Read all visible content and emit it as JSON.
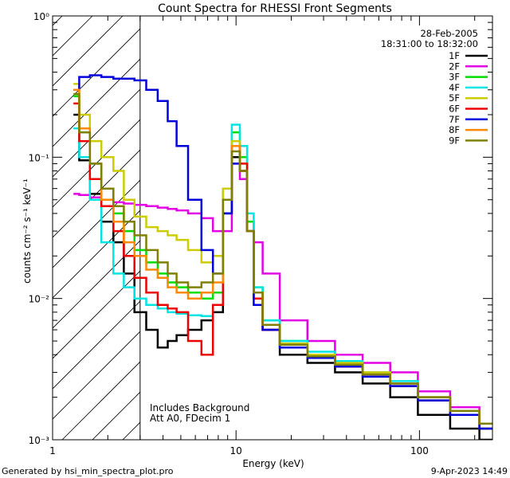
{
  "chart_data": {
    "type": "line",
    "title": "Count Spectra for RHESSI Front Segments",
    "xlabel": "Energy (keV)",
    "ylabel": "counts cm⁻² s⁻¹ keV⁻¹",
    "xscale": "log",
    "yscale": "log",
    "xlim": [
      1,
      250
    ],
    "ylim": [
      0.001,
      1.0
    ],
    "x_ticks": [
      {
        "v": 1,
        "label": "1"
      },
      {
        "v": 10,
        "label": "10"
      },
      {
        "v": 100,
        "label": "100"
      }
    ],
    "y_ticks": [
      {
        "v": 1,
        "label": "10⁰"
      },
      {
        "v": 0.1,
        "label": "10⁻¹"
      },
      {
        "v": 0.01,
        "label": "10⁻²"
      },
      {
        "v": 0.001,
        "label": "10⁻³"
      }
    ],
    "date": "28-Feb-2005",
    "time_range": "18:31:00 to 18:32:00",
    "threshold_energy": 3.0,
    "annotation_lines": [
      "Includes Background",
      "Att A0, FDecim 1"
    ],
    "footer_left": "Generated by hsi_min_spectra_plot.pro",
    "footer_right": "9-Apr-2023 14:49",
    "series": [
      {
        "name": "1F",
        "color": "#000000",
        "x": [
          1.3,
          1.5,
          1.7,
          2.0,
          2.3,
          2.6,
          3.0,
          3.5,
          4.0,
          4.5,
          5.0,
          6.0,
          7.0,
          8.0,
          9.0,
          10.0,
          11.0,
          12.0,
          13.0,
          15.0,
          20.0,
          30.0,
          40.0,
          60.0,
          80.0,
          120.0,
          180.0,
          250.0
        ],
        "y": [
          0.2,
          0.095,
          0.055,
          0.035,
          0.025,
          0.015,
          0.008,
          0.006,
          0.0045,
          0.005,
          0.0055,
          0.006,
          0.007,
          0.008,
          0.04,
          0.1,
          0.08,
          0.03,
          0.01,
          0.006,
          0.004,
          0.0035,
          0.003,
          0.0025,
          0.002,
          0.0015,
          0.0012,
          0.001
        ]
      },
      {
        "name": "2F",
        "color": "#e400e4",
        "x": [
          1.3,
          1.5,
          1.7,
          2.0,
          2.3,
          2.6,
          3.0,
          3.5,
          4.0,
          4.5,
          5.0,
          6.0,
          7.0,
          8.0,
          9.0,
          10.0,
          11.0,
          12.0,
          13.0,
          15.0,
          20.0,
          30.0,
          40.0,
          60.0,
          80.0,
          120.0,
          180.0,
          250.0
        ],
        "y": [
          0.055,
          0.054,
          0.052,
          0.05,
          0.048,
          0.047,
          0.046,
          0.045,
          0.044,
          0.043,
          0.042,
          0.04,
          0.037,
          0.03,
          0.03,
          0.09,
          0.07,
          0.035,
          0.025,
          0.015,
          0.007,
          0.005,
          0.004,
          0.0035,
          0.003,
          0.0022,
          0.0017,
          0.0013
        ]
      },
      {
        "name": "3F",
        "color": "#00dd00",
        "x": [
          1.3,
          1.5,
          1.7,
          2.0,
          2.3,
          2.6,
          3.0,
          3.5,
          4.0,
          4.5,
          5.0,
          6.0,
          7.0,
          8.0,
          9.0,
          10.0,
          11.0,
          12.0,
          13.0,
          15.0,
          20.0,
          30.0,
          40.0,
          60.0,
          80.0,
          120.0,
          180.0,
          250.0
        ],
        "y": [
          0.27,
          0.15,
          0.09,
          0.06,
          0.04,
          0.03,
          0.022,
          0.018,
          0.015,
          0.013,
          0.012,
          0.011,
          0.01,
          0.011,
          0.05,
          0.15,
          0.1,
          0.035,
          0.012,
          0.007,
          0.005,
          0.004,
          0.0035,
          0.003,
          0.0025,
          0.002,
          0.0016,
          0.0012
        ]
      },
      {
        "name": "4F",
        "color": "#00e4e4",
        "x": [
          1.3,
          1.5,
          1.7,
          2.0,
          2.3,
          2.6,
          3.0,
          3.5,
          4.0,
          4.5,
          5.0,
          6.0,
          7.0,
          8.0,
          9.0,
          10.0,
          11.0,
          12.0,
          13.0,
          15.0,
          20.0,
          30.0,
          40.0,
          60.0,
          80.0,
          120.0,
          180.0,
          250.0
        ],
        "y": [
          0.16,
          0.1,
          0.05,
          0.025,
          0.015,
          0.012,
          0.01,
          0.009,
          0.0085,
          0.008,
          0.0078,
          0.0076,
          0.0075,
          0.009,
          0.06,
          0.17,
          0.12,
          0.04,
          0.012,
          0.007,
          0.005,
          0.0042,
          0.0036,
          0.003,
          0.0026,
          0.002,
          0.0016,
          0.0013
        ]
      },
      {
        "name": "5F",
        "color": "#cccc00",
        "x": [
          1.3,
          1.5,
          1.7,
          2.0,
          2.3,
          2.6,
          3.0,
          3.5,
          4.0,
          4.5,
          5.0,
          6.0,
          7.0,
          8.0,
          9.0,
          10.0,
          11.0,
          12.0,
          13.0,
          15.0,
          20.0,
          30.0,
          40.0,
          60.0,
          80.0,
          120.0,
          180.0,
          250.0
        ],
        "y": [
          0.33,
          0.2,
          0.13,
          0.1,
          0.08,
          0.05,
          0.038,
          0.032,
          0.03,
          0.028,
          0.026,
          0.022,
          0.018,
          0.02,
          0.06,
          0.13,
          0.09,
          0.03,
          0.011,
          0.0065,
          0.0048,
          0.004,
          0.0035,
          0.003,
          0.0025,
          0.002,
          0.0016,
          0.0013
        ]
      },
      {
        "name": "6F",
        "color": "#ee0000",
        "x": [
          1.3,
          1.5,
          1.7,
          2.0,
          2.3,
          2.6,
          3.0,
          3.5,
          4.0,
          4.5,
          5.0,
          6.0,
          7.0,
          8.0,
          9.0,
          10.0,
          11.0,
          12.0,
          13.0,
          15.0,
          20.0,
          30.0,
          40.0,
          60.0,
          80.0,
          120.0,
          180.0,
          250.0
        ],
        "y": [
          0.24,
          0.13,
          0.07,
          0.045,
          0.03,
          0.02,
          0.014,
          0.011,
          0.009,
          0.0085,
          0.008,
          0.005,
          0.004,
          0.009,
          0.05,
          0.12,
          0.09,
          0.03,
          0.01,
          0.006,
          0.0045,
          0.0038,
          0.0033,
          0.0028,
          0.0024,
          0.0019,
          0.0015,
          0.0012
        ]
      },
      {
        "name": "7F",
        "color": "#0000dd",
        "x": [
          1.3,
          1.5,
          1.7,
          2.0,
          2.3,
          2.6,
          3.0,
          3.5,
          4.0,
          4.5,
          5.0,
          6.0,
          7.0,
          8.0,
          9.0,
          10.0,
          11.0,
          12.0,
          13.0,
          15.0,
          20.0,
          30.0,
          40.0,
          60.0,
          80.0,
          120.0,
          180.0,
          250.0
        ],
        "y": [
          0.3,
          0.37,
          0.38,
          0.37,
          0.36,
          0.36,
          0.35,
          0.3,
          0.25,
          0.18,
          0.12,
          0.05,
          0.022,
          0.015,
          0.04,
          0.09,
          0.08,
          0.03,
          0.009,
          0.006,
          0.0045,
          0.0038,
          0.0033,
          0.0028,
          0.0024,
          0.0019,
          0.0015,
          0.0012
        ]
      },
      {
        "name": "8F",
        "color": "#ff8800",
        "x": [
          1.3,
          1.5,
          1.7,
          2.0,
          2.3,
          2.6,
          3.0,
          3.5,
          4.0,
          4.5,
          5.0,
          6.0,
          7.0,
          8.0,
          9.0,
          10.0,
          11.0,
          12.0,
          13.0,
          15.0,
          20.0,
          30.0,
          40.0,
          60.0,
          80.0,
          120.0,
          180.0,
          250.0
        ],
        "y": [
          0.3,
          0.16,
          0.09,
          0.05,
          0.035,
          0.025,
          0.02,
          0.016,
          0.014,
          0.012,
          0.011,
          0.01,
          0.011,
          0.013,
          0.05,
          0.12,
          0.08,
          0.03,
          0.011,
          0.0065,
          0.0047,
          0.0039,
          0.0034,
          0.0029,
          0.0025,
          0.002,
          0.0016,
          0.0013
        ]
      },
      {
        "name": "9F",
        "color": "#808000",
        "x": [
          1.3,
          1.5,
          1.7,
          2.0,
          2.3,
          2.6,
          3.0,
          3.5,
          4.0,
          4.5,
          5.0,
          6.0,
          7.0,
          8.0,
          9.0,
          10.0,
          11.0,
          12.0,
          13.0,
          15.0,
          20.0,
          30.0,
          40.0,
          60.0,
          80.0,
          120.0,
          180.0,
          250.0
        ],
        "y": [
          0.28,
          0.15,
          0.09,
          0.06,
          0.045,
          0.035,
          0.028,
          0.022,
          0.018,
          0.015,
          0.013,
          0.012,
          0.013,
          0.015,
          0.05,
          0.11,
          0.08,
          0.03,
          0.011,
          0.0065,
          0.0047,
          0.0039,
          0.0034,
          0.0029,
          0.0025,
          0.002,
          0.0016,
          0.0013
        ]
      }
    ]
  }
}
